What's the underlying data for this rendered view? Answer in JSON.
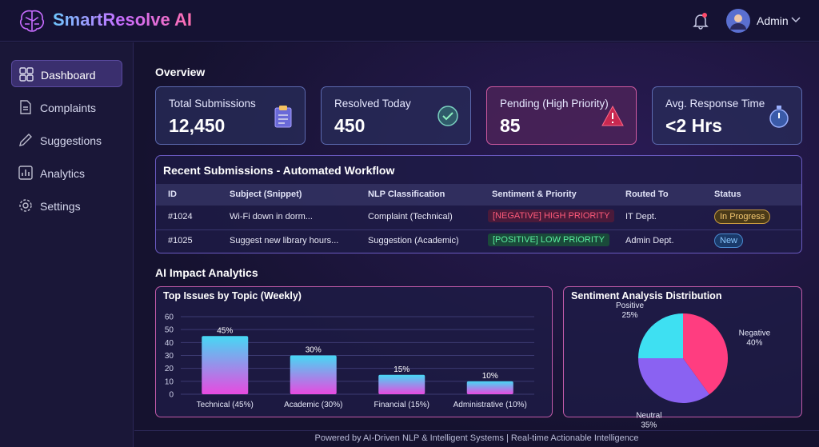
{
  "header": {
    "title": "SmartResolve AI",
    "user": "Admin"
  },
  "sidebar": {
    "items": [
      "Dashboard",
      "Complaints",
      "Suggestions",
      "Analytics",
      "Settings"
    ]
  },
  "overview": {
    "title": "Overview",
    "cards": [
      {
        "label": "Total Submissions",
        "value": "12,450"
      },
      {
        "label": "Resolved Today",
        "value": "450"
      },
      {
        "label": "Pending (High Priority)",
        "value": "85"
      },
      {
        "label": "Avg. Response Time",
        "value": "<2 Hrs"
      }
    ]
  },
  "table": {
    "title": "Recent Submissions - Automated Workflow",
    "columns": [
      "ID",
      "Subject (Snippet)",
      "NLP Classification",
      "Sentiment & Priority",
      "Routed To",
      "Status"
    ],
    "rows": [
      [
        "#1024",
        "Wi-Fi down in dorm...",
        "Complaint (Technical)",
        "[NEGATIVE] HIGH PRIORITY",
        "IT Dept.",
        "In Progress"
      ],
      [
        "#1025",
        "Suggest new library hours...",
        "Suggestion (Academic)",
        "[POSITIVE] LOW PRIORITY",
        "Admin Dept.",
        "New"
      ]
    ]
  },
  "analytics": {
    "title": "AI Impact Analytics",
    "bar_chart": {
      "type": "bar",
      "title": "Top Issues by Topic (Weekly)",
      "categories": [
        "Technical (45%)",
        "Academic (30%)",
        "Financial (15%)",
        "Administrative (10%)"
      ],
      "values": [
        45,
        30,
        15,
        10
      ],
      "value_labels": [
        "45%",
        "30%",
        "15%",
        "10%"
      ],
      "ylim": [
        0,
        60
      ],
      "yticks": [
        0,
        10,
        20,
        30,
        40,
        50,
        60
      ],
      "grid": true
    },
    "pie_chart": {
      "type": "pie",
      "title": "Sentiment Analysis Distribution",
      "categories": [
        "Positive",
        "Neutral",
        "Negative"
      ],
      "values": [
        25,
        35,
        40
      ],
      "value_labels": [
        "25%",
        "35%",
        "40%"
      ],
      "colors": [
        "#3ee0f2",
        "#8a62f2",
        "#ff3d80"
      ]
    }
  },
  "footer": "Powered by AI-Driven NLP & Intelligent Systems | Real-time Actionable Intelligence"
}
